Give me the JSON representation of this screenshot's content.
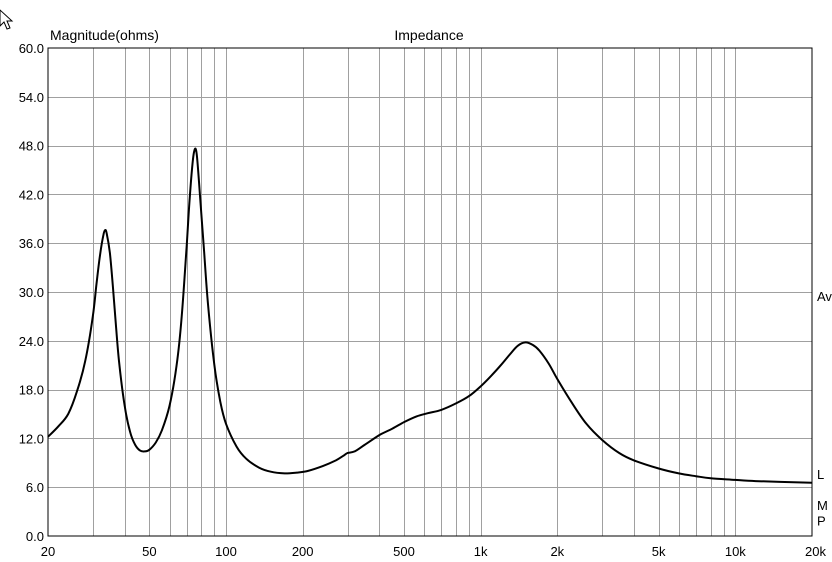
{
  "chart_data": {
    "type": "line",
    "title": "Impedance",
    "ylabel": "Magnitude(ohms)",
    "xlabel": "",
    "xscale": "log",
    "xlim": [
      20,
      20000
    ],
    "ylim": [
      0,
      60
    ],
    "grid": true,
    "x_ticks": [
      {
        "v": 20,
        "label": "20"
      },
      {
        "v": 50,
        "label": "50"
      },
      {
        "v": 100,
        "label": "100"
      },
      {
        "v": 200,
        "label": "200"
      },
      {
        "v": 500,
        "label": "500"
      },
      {
        "v": 1000,
        "label": "1k"
      },
      {
        "v": 2000,
        "label": "2k"
      },
      {
        "v": 5000,
        "label": "5k"
      },
      {
        "v": 10000,
        "label": "10k"
      },
      {
        "v": 20000,
        "label": "20k"
      }
    ],
    "y_ticks": [
      {
        "v": 0,
        "label": "0.0"
      },
      {
        "v": 6,
        "label": "6.0"
      },
      {
        "v": 12,
        "label": "12.0"
      },
      {
        "v": 18,
        "label": "18.0"
      },
      {
        "v": 24,
        "label": "24.0"
      },
      {
        "v": 30,
        "label": "30.0"
      },
      {
        "v": 36,
        "label": "36.0"
      },
      {
        "v": 42,
        "label": "42.0"
      },
      {
        "v": 48,
        "label": "48.0"
      },
      {
        "v": 54,
        "label": "54.0"
      },
      {
        "v": 60,
        "label": "60.0"
      }
    ],
    "right_markers": [
      {
        "label": "Av",
        "y": 29.5
      },
      {
        "label": "L",
        "y": 7.6
      },
      {
        "label": "M",
        "y": 3.8
      },
      {
        "label": "P",
        "y": 1.9
      }
    ],
    "series": [
      {
        "points": [
          [
            20,
            12.2
          ],
          [
            22,
            13.5
          ],
          [
            24,
            15.0
          ],
          [
            26,
            17.8
          ],
          [
            28,
            21.5
          ],
          [
            30,
            27.0
          ],
          [
            31,
            31.0
          ],
          [
            32,
            34.5
          ],
          [
            33,
            37.0
          ],
          [
            33.5,
            37.6
          ],
          [
            34,
            37.2
          ],
          [
            35,
            34.8
          ],
          [
            36,
            30.5
          ],
          [
            37,
            25.8
          ],
          [
            38,
            21.5
          ],
          [
            40,
            16.0
          ],
          [
            42,
            12.8
          ],
          [
            44,
            11.2
          ],
          [
            46,
            10.5
          ],
          [
            48,
            10.4
          ],
          [
            50,
            10.6
          ],
          [
            53,
            11.5
          ],
          [
            56,
            13.0
          ],
          [
            60,
            16.0
          ],
          [
            64,
            21.0
          ],
          [
            67,
            27.0
          ],
          [
            70,
            35.5
          ],
          [
            72,
            41.5
          ],
          [
            74,
            46.0
          ],
          [
            75,
            47.3
          ],
          [
            76,
            47.6
          ],
          [
            77,
            46.5
          ],
          [
            79,
            42.0
          ],
          [
            82,
            35.0
          ],
          [
            85,
            28.5
          ],
          [
            90,
            21.0
          ],
          [
            95,
            16.5
          ],
          [
            100,
            13.8
          ],
          [
            110,
            11.0
          ],
          [
            120,
            9.5
          ],
          [
            135,
            8.4
          ],
          [
            150,
            7.9
          ],
          [
            170,
            7.7
          ],
          [
            190,
            7.8
          ],
          [
            210,
            8.0
          ],
          [
            240,
            8.6
          ],
          [
            270,
            9.3
          ],
          [
            290,
            9.9
          ],
          [
            300,
            10.2
          ],
          [
            320,
            10.4
          ],
          [
            350,
            11.2
          ],
          [
            400,
            12.4
          ],
          [
            450,
            13.2
          ],
          [
            500,
            14.0
          ],
          [
            560,
            14.7
          ],
          [
            620,
            15.1
          ],
          [
            700,
            15.5
          ],
          [
            800,
            16.3
          ],
          [
            900,
            17.2
          ],
          [
            1000,
            18.4
          ],
          [
            1100,
            19.7
          ],
          [
            1200,
            21.0
          ],
          [
            1300,
            22.3
          ],
          [
            1400,
            23.4
          ],
          [
            1500,
            23.8
          ],
          [
            1600,
            23.5
          ],
          [
            1700,
            22.8
          ],
          [
            1850,
            21.2
          ],
          [
            2000,
            19.3
          ],
          [
            2300,
            16.2
          ],
          [
            2600,
            13.8
          ],
          [
            3000,
            11.8
          ],
          [
            3500,
            10.2
          ],
          [
            4000,
            9.3
          ],
          [
            5000,
            8.3
          ],
          [
            6000,
            7.7
          ],
          [
            7000,
            7.35
          ],
          [
            8000,
            7.1
          ],
          [
            10000,
            6.9
          ],
          [
            12000,
            6.75
          ],
          [
            15000,
            6.65
          ],
          [
            20000,
            6.55
          ]
        ]
      }
    ]
  }
}
